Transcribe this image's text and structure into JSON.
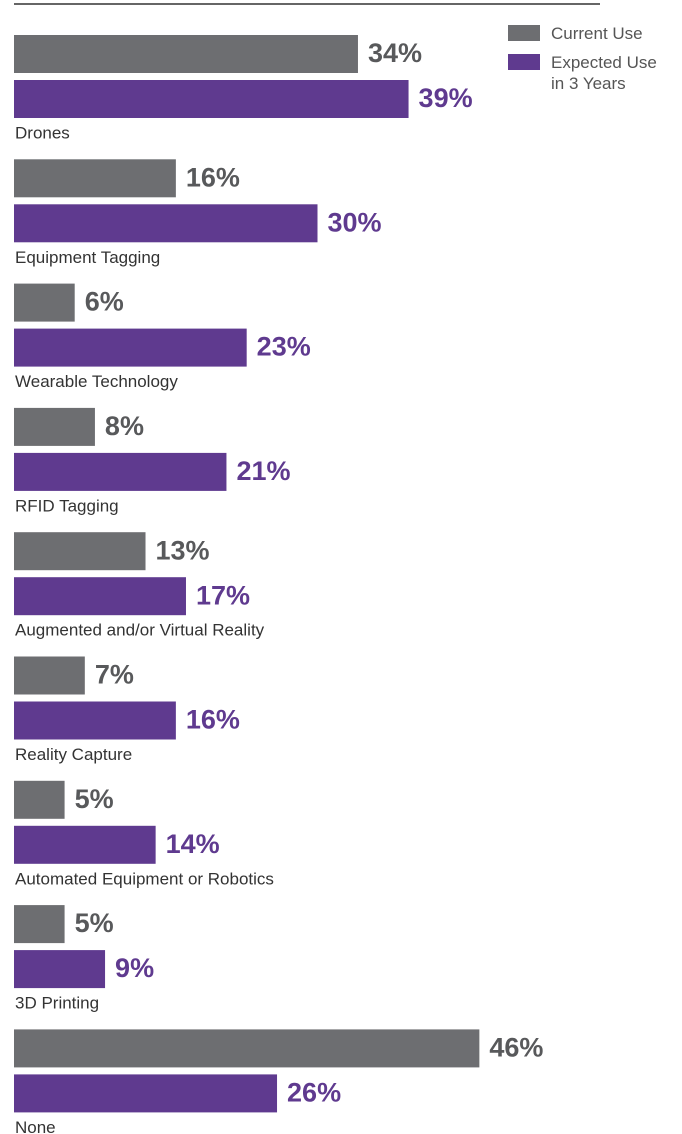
{
  "chart_data": {
    "type": "bar",
    "orientation": "horizontal",
    "categories": [
      "Drones",
      "Equipment Tagging",
      "Wearable Technology",
      "RFID Tagging",
      "Augmented and/or Virtual Reality",
      "Reality Capture",
      "Automated Equipment or Robotics",
      "3D Printing",
      "None"
    ],
    "series": [
      {
        "name": "Current Use",
        "color": "#6d6e71",
        "values": [
          34,
          16,
          6,
          8,
          13,
          7,
          5,
          5,
          46
        ],
        "value_labels": [
          "34%",
          "16%",
          "6%",
          "8%",
          "13%",
          "7%",
          "5%",
          "5%",
          "46%"
        ]
      },
      {
        "name": "Expected Use in 3 Years",
        "color": "#5f3a8f",
        "values": [
          39,
          30,
          23,
          21,
          17,
          16,
          14,
          9,
          26
        ],
        "value_labels": [
          "39%",
          "30%",
          "23%",
          "21%",
          "17%",
          "16%",
          "14%",
          "9%",
          "26%"
        ]
      }
    ],
    "xlim": [
      0,
      60
    ],
    "legend": "top-right"
  }
}
